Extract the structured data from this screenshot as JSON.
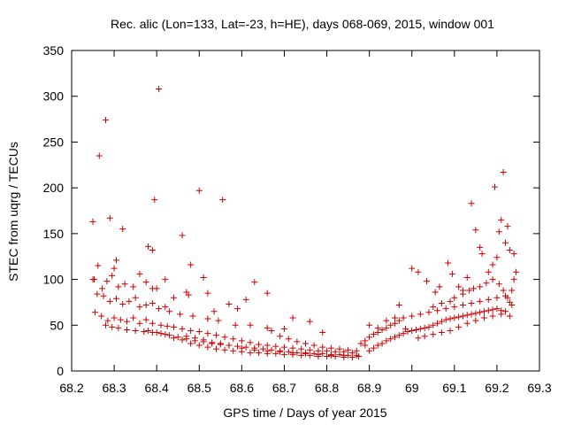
{
  "chart_data": {
    "type": "scatter",
    "title": "Rec. alic (Lon=133, Lat=-23, h=HE), days 068-069, 2015, window 001",
    "xlabel": "GPS time / Days of year 2015",
    "ylabel": "STEC from uqrg / TECUs",
    "xlim": [
      68.2,
      69.3
    ],
    "ylim": [
      0,
      350
    ],
    "xticks": [
      68.2,
      68.3,
      68.4,
      68.5,
      68.6,
      68.7,
      68.8,
      68.9,
      69.0,
      69.1,
      69.2,
      69.3
    ],
    "xtick_labels": [
      "68.2",
      "68.3",
      "68.4",
      "68.5",
      "68.6",
      "68.7",
      "68.8",
      "68.9",
      "69",
      "69.1",
      "69.2",
      "69.3"
    ],
    "yticks": [
      0,
      50,
      100,
      150,
      200,
      250,
      300,
      350
    ],
    "ytick_labels": [
      "0",
      "50",
      "100",
      "150",
      "200",
      "250",
      "300",
      "350"
    ],
    "grid": false,
    "marker": "+",
    "color": "#cc0000",
    "series": [
      {
        "name": "STEC",
        "points": [
          [
            68.25,
            163
          ],
          [
            68.265,
            235
          ],
          [
            68.28,
            274
          ],
          [
            68.29,
            167
          ],
          [
            68.305,
            121
          ],
          [
            68.32,
            155
          ],
          [
            68.38,
            136
          ],
          [
            68.39,
            132
          ],
          [
            68.395,
            187
          ],
          [
            68.405,
            308
          ],
          [
            68.46,
            148
          ],
          [
            68.48,
            116
          ],
          [
            68.5,
            197
          ],
          [
            68.51,
            102
          ],
          [
            68.555,
            187
          ],
          [
            68.63,
            97
          ],
          [
            68.66,
            85
          ],
          [
            68.253,
            100
          ],
          [
            68.262,
            115
          ],
          [
            68.272,
            90
          ],
          [
            68.283,
            98
          ],
          [
            68.295,
            104
          ],
          [
            68.3,
            112
          ],
          [
            68.31,
            92
          ],
          [
            68.325,
            95
          ],
          [
            68.345,
            92
          ],
          [
            68.36,
            106
          ],
          [
            68.375,
            97
          ],
          [
            68.39,
            90
          ],
          [
            68.4,
            90
          ],
          [
            68.42,
            100
          ],
          [
            68.44,
            80
          ],
          [
            68.47,
            86
          ],
          [
            68.52,
            85
          ],
          [
            68.57,
            73
          ],
          [
            68.61,
            78
          ],
          [
            68.59,
            68
          ],
          [
            68.535,
            65
          ],
          [
            68.25,
            100
          ],
          [
            68.26,
            84
          ],
          [
            68.275,
            82
          ],
          [
            68.29,
            76
          ],
          [
            68.305,
            79
          ],
          [
            68.32,
            73
          ],
          [
            68.335,
            76
          ],
          [
            68.35,
            80
          ],
          [
            68.36,
            70
          ],
          [
            68.375,
            72
          ],
          [
            68.39,
            74
          ],
          [
            68.405,
            68
          ],
          [
            68.42,
            70
          ],
          [
            68.43,
            65
          ],
          [
            68.455,
            62
          ],
          [
            68.475,
            83
          ],
          [
            68.485,
            60
          ],
          [
            68.52,
            57
          ],
          [
            68.545,
            55
          ],
          [
            68.585,
            50
          ],
          [
            68.62,
            50
          ],
          [
            68.66,
            47
          ],
          [
            68.7,
            46
          ],
          [
            68.76,
            54
          ],
          [
            68.72,
            58
          ],
          [
            68.79,
            42
          ],
          [
            68.255,
            64
          ],
          [
            68.27,
            60
          ],
          [
            68.285,
            55
          ],
          [
            68.3,
            58
          ],
          [
            68.315,
            56
          ],
          [
            68.33,
            54
          ],
          [
            68.345,
            58
          ],
          [
            68.36,
            52
          ],
          [
            68.375,
            56
          ],
          [
            68.39,
            52
          ],
          [
            68.41,
            50
          ],
          [
            68.425,
            49
          ],
          [
            68.44,
            48
          ],
          [
            68.46,
            46
          ],
          [
            68.48,
            44
          ],
          [
            68.5,
            43
          ],
          [
            68.52,
            41
          ],
          [
            68.54,
            39
          ],
          [
            68.56,
            37
          ],
          [
            68.58,
            35
          ],
          [
            68.6,
            33
          ],
          [
            68.62,
            31
          ],
          [
            68.64,
            29
          ],
          [
            68.66,
            28
          ],
          [
            68.68,
            27
          ],
          [
            68.7,
            26
          ],
          [
            68.72,
            25
          ],
          [
            68.74,
            24
          ],
          [
            68.76,
            23
          ],
          [
            68.78,
            22
          ],
          [
            68.8,
            22
          ],
          [
            68.82,
            21
          ],
          [
            68.84,
            21
          ],
          [
            68.86,
            20
          ],
          [
            68.28,
            50
          ],
          [
            68.295,
            48
          ],
          [
            68.31,
            47
          ],
          [
            68.33,
            45
          ],
          [
            68.35,
            44
          ],
          [
            68.37,
            43
          ],
          [
            68.39,
            42
          ],
          [
            68.41,
            41
          ],
          [
            68.43,
            39
          ],
          [
            68.45,
            37
          ],
          [
            68.47,
            35
          ],
          [
            68.49,
            33
          ],
          [
            68.51,
            32
          ],
          [
            68.53,
            30
          ],
          [
            68.55,
            29
          ],
          [
            68.57,
            28
          ],
          [
            68.59,
            27
          ],
          [
            68.61,
            26
          ],
          [
            68.63,
            25
          ],
          [
            68.65,
            24
          ],
          [
            68.67,
            23
          ],
          [
            68.69,
            22
          ],
          [
            68.71,
            21
          ],
          [
            68.73,
            20
          ],
          [
            68.75,
            20
          ],
          [
            68.77,
            19
          ],
          [
            68.79,
            19
          ],
          [
            68.81,
            18
          ],
          [
            68.83,
            18
          ],
          [
            68.85,
            17
          ],
          [
            68.87,
            17
          ],
          [
            68.38,
            44
          ],
          [
            68.4,
            42
          ],
          [
            68.42,
            40
          ],
          [
            68.44,
            36
          ],
          [
            68.46,
            34
          ],
          [
            68.48,
            30
          ],
          [
            68.5,
            28
          ],
          [
            68.52,
            26
          ],
          [
            68.54,
            24
          ],
          [
            68.56,
            23
          ],
          [
            68.58,
            22
          ],
          [
            68.6,
            21
          ],
          [
            68.62,
            20
          ],
          [
            68.64,
            20
          ],
          [
            68.66,
            19
          ],
          [
            68.68,
            19
          ],
          [
            68.7,
            18
          ],
          [
            68.72,
            18
          ],
          [
            68.74,
            17
          ],
          [
            68.76,
            17
          ],
          [
            68.78,
            16
          ],
          [
            68.8,
            16
          ],
          [
            68.82,
            16
          ],
          [
            68.84,
            15
          ],
          [
            68.86,
            15
          ],
          [
            68.875,
            16
          ],
          [
            68.47,
            38
          ],
          [
            68.49,
            36
          ],
          [
            68.51,
            34
          ],
          [
            68.53,
            31
          ],
          [
            68.55,
            30
          ],
          [
            68.57,
            28
          ],
          [
            68.6,
            25
          ],
          [
            68.63,
            23
          ],
          [
            68.66,
            22
          ],
          [
            68.69,
            21
          ],
          [
            68.72,
            20
          ],
          [
            68.75,
            19
          ],
          [
            68.78,
            18
          ],
          [
            68.81,
            17
          ],
          [
            68.84,
            17
          ],
          [
            68.9,
            22
          ],
          [
            68.91,
            25
          ],
          [
            68.92,
            28
          ],
          [
            68.93,
            30
          ],
          [
            68.94,
            33
          ],
          [
            68.95,
            35
          ],
          [
            68.96,
            37
          ],
          [
            68.97,
            39
          ],
          [
            68.98,
            41
          ],
          [
            68.99,
            43
          ],
          [
            69.0,
            44
          ],
          [
            69.01,
            45
          ],
          [
            69.02,
            46
          ],
          [
            69.03,
            47
          ],
          [
            69.04,
            48
          ],
          [
            69.05,
            50
          ],
          [
            69.06,
            52
          ],
          [
            69.07,
            54
          ],
          [
            69.08,
            56
          ],
          [
            69.09,
            57
          ],
          [
            69.1,
            58
          ],
          [
            69.11,
            59
          ],
          [
            69.12,
            60
          ],
          [
            69.13,
            61
          ],
          [
            69.14,
            62
          ],
          [
            69.15,
            63
          ],
          [
            69.16,
            64
          ],
          [
            69.17,
            65
          ],
          [
            69.18,
            66
          ],
          [
            69.19,
            67
          ],
          [
            69.2,
            68
          ],
          [
            69.21,
            66
          ],
          [
            69.22,
            65
          ],
          [
            68.88,
            30
          ],
          [
            68.89,
            33
          ],
          [
            68.9,
            37
          ],
          [
            68.91,
            40
          ],
          [
            68.92,
            42
          ],
          [
            68.93,
            45
          ],
          [
            68.94,
            47
          ],
          [
            68.95,
            50
          ],
          [
            68.96,
            52
          ],
          [
            68.97,
            55
          ],
          [
            68.98,
            58
          ],
          [
            69.0,
            60
          ],
          [
            69.02,
            62
          ],
          [
            69.04,
            64
          ],
          [
            69.06,
            66
          ],
          [
            69.08,
            68
          ],
          [
            69.1,
            70
          ],
          [
            69.12,
            72
          ],
          [
            69.14,
            74
          ],
          [
            69.16,
            76
          ],
          [
            69.18,
            78
          ],
          [
            69.2,
            80
          ],
          [
            69.22,
            82
          ],
          [
            69.23,
            75
          ],
          [
            68.9,
            50
          ],
          [
            68.92,
            47
          ],
          [
            68.94,
            55
          ],
          [
            68.96,
            58
          ],
          [
            68.97,
            72
          ],
          [
            68.985,
            46
          ],
          [
            69.015,
            36
          ],
          [
            69.03,
            38
          ],
          [
            69.05,
            40
          ],
          [
            69.07,
            42
          ],
          [
            69.09,
            44
          ],
          [
            69.11,
            48
          ],
          [
            69.13,
            52
          ],
          [
            69.15,
            55
          ],
          [
            69.17,
            58
          ],
          [
            69.19,
            60
          ],
          [
            69.21,
            62
          ],
          [
            69.23,
            60
          ],
          [
            69.0,
            112
          ],
          [
            69.015,
            108
          ],
          [
            69.035,
            98
          ],
          [
            69.055,
            86
          ],
          [
            69.065,
            92
          ],
          [
            69.085,
            118
          ],
          [
            69.095,
            106
          ],
          [
            69.11,
            92
          ],
          [
            69.12,
            88
          ],
          [
            69.13,
            102
          ],
          [
            69.14,
            183
          ],
          [
            69.15,
            154
          ],
          [
            69.16,
            135
          ],
          [
            69.165,
            128
          ],
          [
            69.18,
            108
          ],
          [
            69.19,
            116
          ],
          [
            69.195,
            201
          ],
          [
            69.2,
            124
          ],
          [
            69.205,
            152
          ],
          [
            69.21,
            165
          ],
          [
            69.215,
            217
          ],
          [
            69.22,
            140
          ],
          [
            69.225,
            158
          ],
          [
            69.23,
            132
          ],
          [
            69.24,
            128
          ],
          [
            69.245,
            108
          ],
          [
            69.24,
            100
          ],
          [
            69.235,
            88
          ],
          [
            69.1,
            80
          ],
          [
            69.12,
            84
          ],
          [
            69.135,
            88
          ],
          [
            69.145,
            90
          ],
          [
            69.16,
            92
          ],
          [
            69.175,
            96
          ],
          [
            69.19,
            100
          ],
          [
            69.205,
            95
          ],
          [
            69.215,
            88
          ],
          [
            69.225,
            80
          ],
          [
            69.235,
            72
          ],
          [
            69.05,
            70
          ],
          [
            69.07,
            74
          ],
          [
            69.09,
            76
          ],
          [
            68.67,
            44
          ],
          [
            68.69,
            38
          ],
          [
            68.71,
            35
          ],
          [
            68.73,
            32
          ],
          [
            68.75,
            30
          ],
          [
            68.77,
            28
          ],
          [
            68.79,
            26
          ],
          [
            68.81,
            25
          ],
          [
            68.83,
            24
          ],
          [
            68.85,
            23
          ],
          [
            68.87,
            22
          ],
          [
            68.89,
            28
          ]
        ]
      }
    ]
  }
}
